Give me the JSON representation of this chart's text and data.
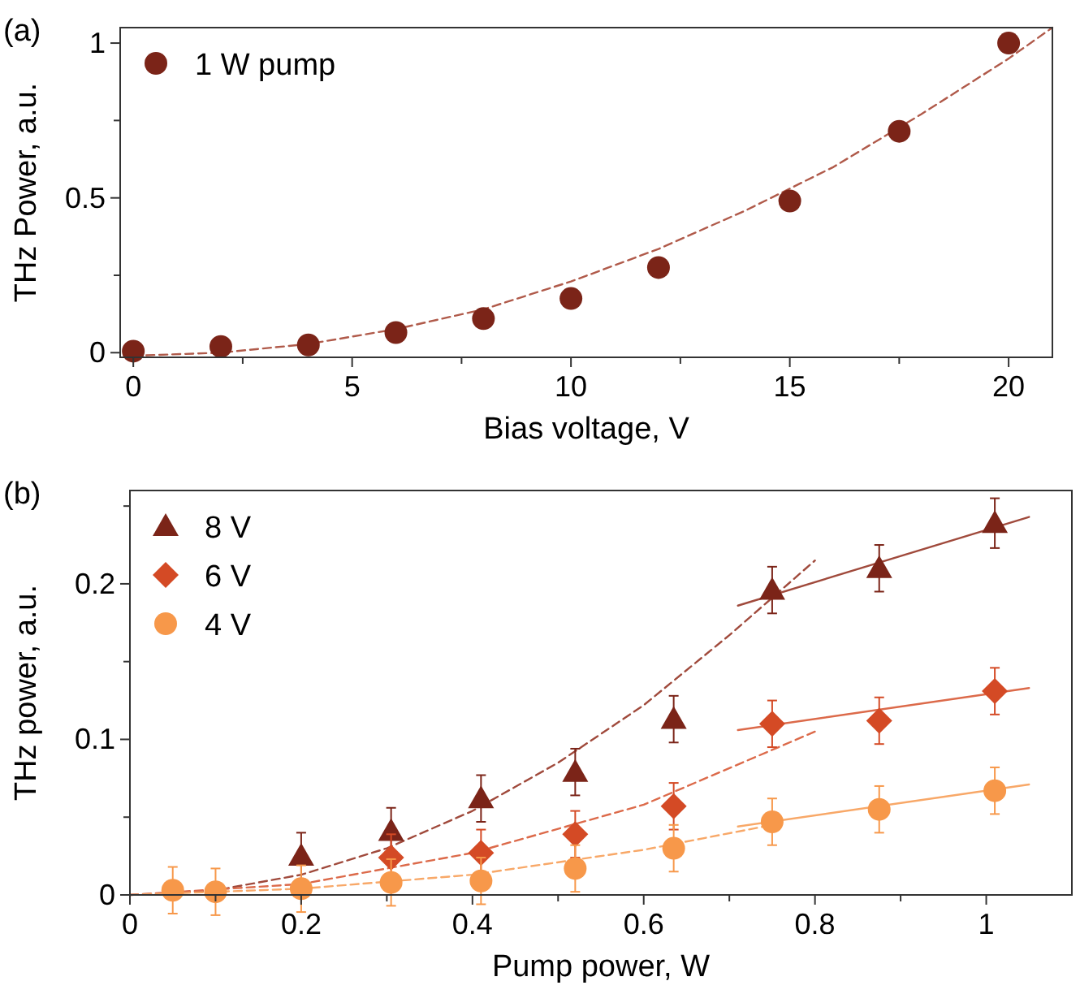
{
  "chart_data": [
    {
      "type": "scatter",
      "title": "(a)",
      "xlabel": "Bias voltage, V",
      "ylabel": "THz Power, a.u.",
      "xlim": [
        -0.3,
        21
      ],
      "ylim": [
        -0.015,
        1.05
      ],
      "xticks": [
        0,
        {
          "value": 2.5,
          "label": null
        },
        5,
        {
          "value": 7.5,
          "label": null
        },
        10,
        {
          "value": 12.5,
          "label": null
        },
        15,
        {
          "value": 17.5,
          "label": null
        },
        20
      ],
      "yticks": [
        0,
        {
          "value": 0.25,
          "label": null
        },
        0.5,
        {
          "value": 0.75,
          "label": null
        },
        1
      ],
      "legend": "top left",
      "grid": false,
      "series": [
        {
          "name": "1 W pump",
          "color": "#7b2418",
          "marker": "circle",
          "x": [
            0,
            2,
            4,
            6,
            8,
            10,
            12,
            15,
            17.5,
            20
          ],
          "values": [
            0.005,
            0.02,
            0.025,
            0.065,
            0.11,
            0.175,
            0.275,
            0.49,
            0.715,
            1.0
          ]
        },
        {
          "type": "line",
          "color": "#b05a4a",
          "marker": "none",
          "line_style": "dashed",
          "x": [
            0,
            2,
            4,
            6,
            8,
            10,
            12,
            14,
            16,
            18,
            20,
            21
          ],
          "values": [
            -0.01,
            0.0,
            0.028,
            0.076,
            0.14,
            0.23,
            0.335,
            0.46,
            0.6,
            0.77,
            0.95,
            1.05
          ]
        }
      ]
    },
    {
      "type": "scatter",
      "title": "(b)",
      "xlabel": "Pump power, W",
      "ylabel": "THz power, a.u.",
      "xlim": [
        0,
        1.1
      ],
      "ylim": [
        0,
        0.26
      ],
      "xticks": [
        0,
        {
          "value": 0.1,
          "label": null
        },
        0.2,
        {
          "value": 0.3,
          "label": null
        },
        0.4,
        {
          "value": 0.5,
          "label": null
        },
        0.6,
        {
          "value": 0.7,
          "label": null
        },
        0.8,
        {
          "value": 0.9,
          "label": null
        },
        1
      ],
      "yticks": [
        0,
        {
          "value": 0.05,
          "label": null
        },
        0.1,
        {
          "value": 0.15,
          "label": null
        },
        0.2,
        {
          "value": 0.25,
          "label": null
        }
      ],
      "legend": "top left",
      "grid": false,
      "series": [
        {
          "name": "8 V",
          "color": "#7b2418",
          "marker": "triangle",
          "x": [
            0.2,
            0.305,
            0.41,
            0.52,
            0.635,
            0.75,
            0.875,
            1.01
          ],
          "values": [
            0.025,
            0.041,
            0.062,
            0.079,
            0.113,
            0.196,
            0.21,
            0.239
          ],
          "errors": [
            0.015,
            0.015,
            0.015,
            0.015,
            0.015,
            0.015,
            0.015,
            0.016
          ]
        },
        {
          "name": "6 V",
          "color": "#d44a25",
          "marker": "diamond",
          "x": [
            0.305,
            0.41,
            0.52,
            0.635,
            0.75,
            0.875,
            1.01
          ],
          "values": [
            0.024,
            0.027,
            0.039,
            0.057,
            0.11,
            0.112,
            0.131
          ],
          "errors": [
            0.015,
            0.015,
            0.015,
            0.015,
            0.015,
            0.015,
            0.015
          ]
        },
        {
          "name": "4 V",
          "color": "#f7984a",
          "marker": "circle",
          "x": [
            0.05,
            0.1,
            0.2,
            0.305,
            0.41,
            0.52,
            0.635,
            0.75,
            0.875,
            1.01
          ],
          "values": [
            0.003,
            0.002,
            0.004,
            0.008,
            0.009,
            0.017,
            0.03,
            0.047,
            0.055,
            0.067
          ],
          "errors": [
            0.015,
            0.015,
            0.015,
            0.015,
            0.015,
            0.015,
            0.015,
            0.015,
            0.015,
            0.015
          ]
        },
        {
          "type": "line",
          "color": "#a04a3c",
          "marker": "none",
          "line_style": "dashed",
          "x": [
            0,
            0.1,
            0.2,
            0.3,
            0.4,
            0.5,
            0.6,
            0.7,
            0.8
          ],
          "values": [
            0,
            0.003,
            0.013,
            0.03,
            0.054,
            0.085,
            0.122,
            0.167,
            0.215
          ]
        },
        {
          "type": "line",
          "color": "#a04a3c",
          "marker": "none",
          "line_style": "solid",
          "x": [
            0.71,
            1.05
          ],
          "values": [
            0.186,
            0.243
          ]
        },
        {
          "type": "line",
          "color": "#dc6a4a",
          "marker": "none",
          "line_style": "dashed",
          "x": [
            0,
            0.2,
            0.4,
            0.6,
            0.8
          ],
          "values": [
            0,
            0.007,
            0.027,
            0.058,
            0.105
          ]
        },
        {
          "type": "line",
          "color": "#dc6a4a",
          "marker": "none",
          "line_style": "solid",
          "x": [
            0.71,
            1.05
          ],
          "values": [
            0.106,
            0.133
          ]
        },
        {
          "type": "line",
          "color": "#f8a868",
          "marker": "none",
          "line_style": "dashed",
          "x": [
            0,
            0.2,
            0.4,
            0.6,
            0.75
          ],
          "values": [
            0,
            0.004,
            0.013,
            0.029,
            0.045
          ]
        },
        {
          "type": "line",
          "color": "#f8a868",
          "marker": "none",
          "line_style": "solid",
          "x": [
            0.71,
            1.05
          ],
          "values": [
            0.044,
            0.071
          ]
        }
      ]
    }
  ]
}
